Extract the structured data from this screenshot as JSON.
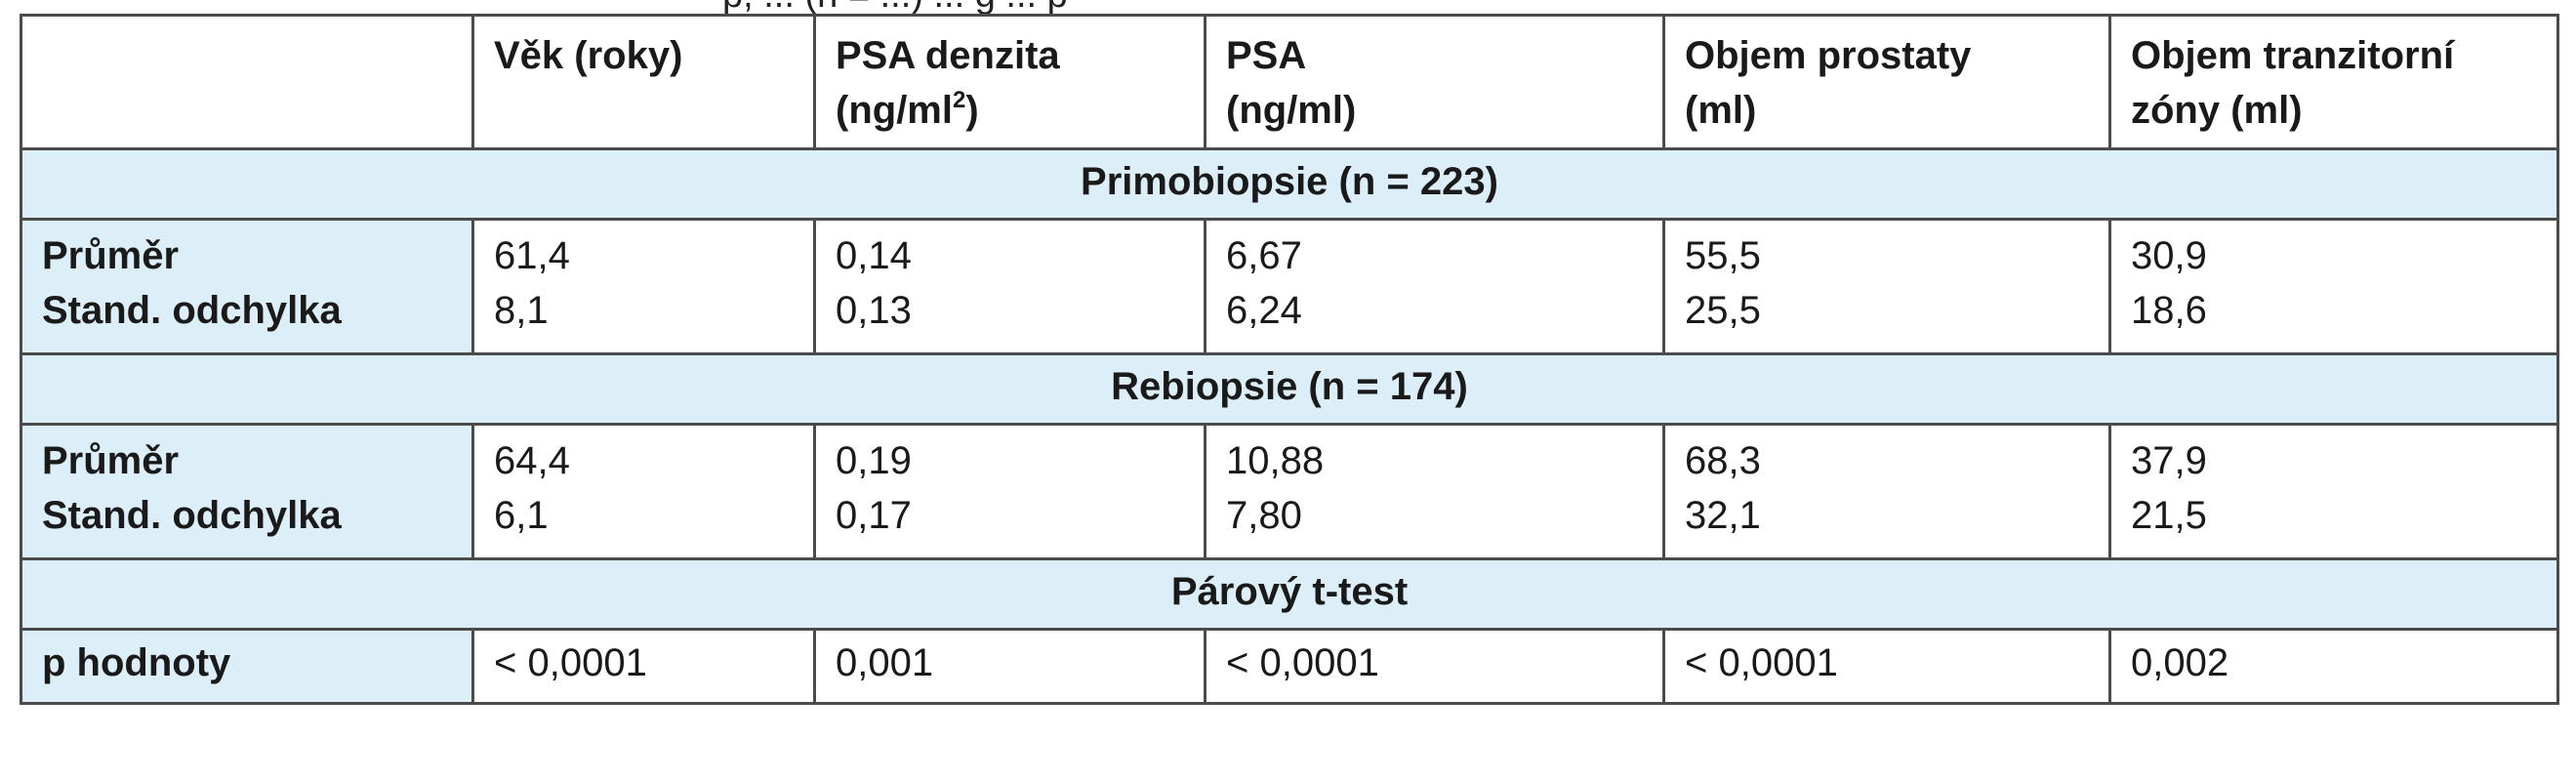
{
  "caption_fragment": "p, ... (n = ...) ... g ... p",
  "header": {
    "corner": "",
    "columns": [
      {
        "line1": "Věk (roky)",
        "line2": ""
      },
      {
        "line1": "PSA denzita",
        "line2": "(ng/ml",
        "sup": "2",
        "line2_end": ")"
      },
      {
        "line1": "PSA",
        "line2": "(ng/ml)"
      },
      {
        "line1": "Objem prostaty",
        "line2": "(ml)"
      },
      {
        "line1": "Objem tranzitorní",
        "line2": "zóny (ml)"
      }
    ]
  },
  "sections": [
    {
      "title": "Primobiopsie (n = 223)",
      "label1": "Průměr",
      "label2": "Stand. odchylka",
      "mean": [
        "61,4",
        "0,14",
        "6,67",
        "55,5",
        "30,9"
      ],
      "sd": [
        "8,1",
        "0,13",
        "6,24",
        "25,5",
        "18,6"
      ]
    },
    {
      "title": "Rebiopsie (n = 174)",
      "label1": "Průměr",
      "label2": "Stand. odchylka",
      "mean": [
        "64,4",
        "0,19",
        "10,88",
        "68,3",
        "37,9"
      ],
      "sd": [
        "6,1",
        "0,17",
        "7,80",
        "32,1",
        "21,5"
      ]
    }
  ],
  "test": {
    "title": "Párový t-test",
    "label": "p hodnoty",
    "values": [
      "< 0,0001",
      "0,001",
      "< 0,0001",
      "< 0,0001",
      "0,002"
    ]
  }
}
